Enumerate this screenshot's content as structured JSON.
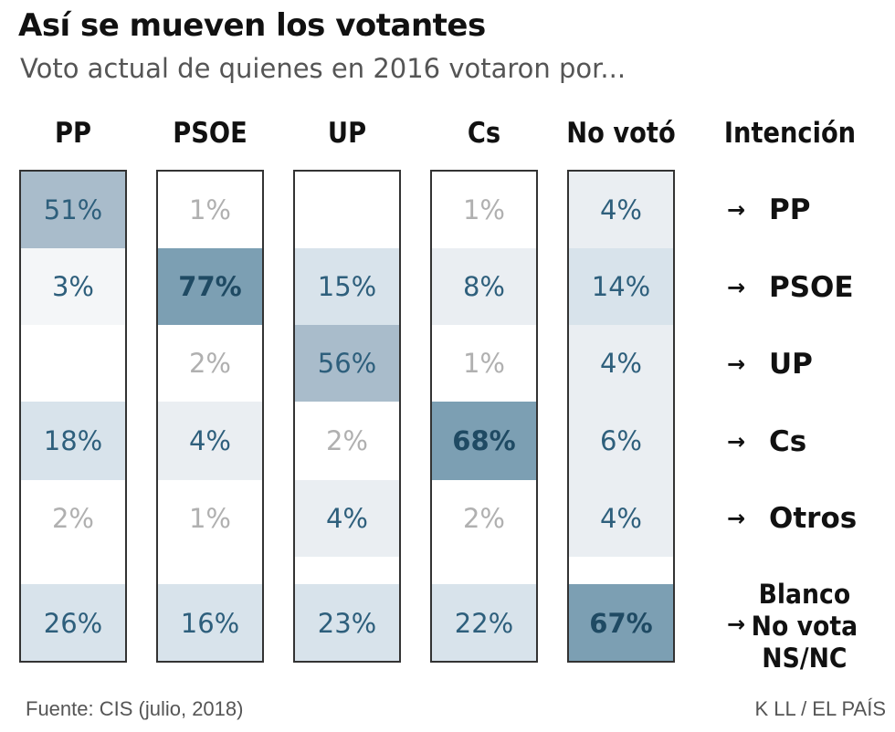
{
  "chart_data": {
    "type": "table",
    "title": "Así se mueven los votantes",
    "subtitle": "Voto actual de quienes en 2016 votaron por...",
    "columns": [
      "PP",
      "PSOE",
      "UP",
      "Cs",
      "No votó"
    ],
    "row_header": "Intención",
    "rows": [
      {
        "arrow": "→",
        "label": "PP",
        "values": [
          "51%",
          "1%",
          "",
          "1%",
          "4%"
        ]
      },
      {
        "arrow": "→",
        "label": "PSOE",
        "values": [
          "3%",
          "77%",
          "15%",
          "8%",
          "14%"
        ]
      },
      {
        "arrow": "→",
        "label": "UP",
        "values": [
          "",
          "2%",
          "56%",
          "1%",
          "4%"
        ]
      },
      {
        "arrow": "→",
        "label": "Cs",
        "values": [
          "18%",
          "4%",
          "2%",
          "68%",
          "6%"
        ]
      },
      {
        "arrow": "→",
        "label": "Otros",
        "values": [
          "2%",
          "1%",
          "4%",
          "2%",
          "4%"
        ]
      },
      {
        "arrow": "→",
        "label_lines": [
          "Blanco",
          "No vota",
          "NS/NC"
        ],
        "values": [
          "26%",
          "16%",
          "23%",
          "22%",
          "67%"
        ]
      }
    ],
    "numeric_values": [
      [
        51,
        1,
        null,
        1,
        4
      ],
      [
        3,
        77,
        15,
        8,
        14
      ],
      [
        null,
        2,
        56,
        1,
        4
      ],
      [
        18,
        4,
        2,
        68,
        6
      ],
      [
        2,
        1,
        4,
        2,
        4
      ],
      [
        26,
        16,
        23,
        22,
        67
      ]
    ],
    "colors": {
      "light_text": "#b0b0b0",
      "mid_text": "#2e5f7c",
      "dark_text": "#1f4a63",
      "shade_none": "#ffffff",
      "shade_faint": "#f4f6f8",
      "shade_light": "#eaeef2",
      "shade_mid": "#d8e3eb",
      "shade_strong": "#a9bccb",
      "shade_max": "#7c9fb3"
    }
  },
  "footer": {
    "source": "Fuente: CIS (julio, 2018)",
    "credit": "K LL / EL PAÍS"
  }
}
